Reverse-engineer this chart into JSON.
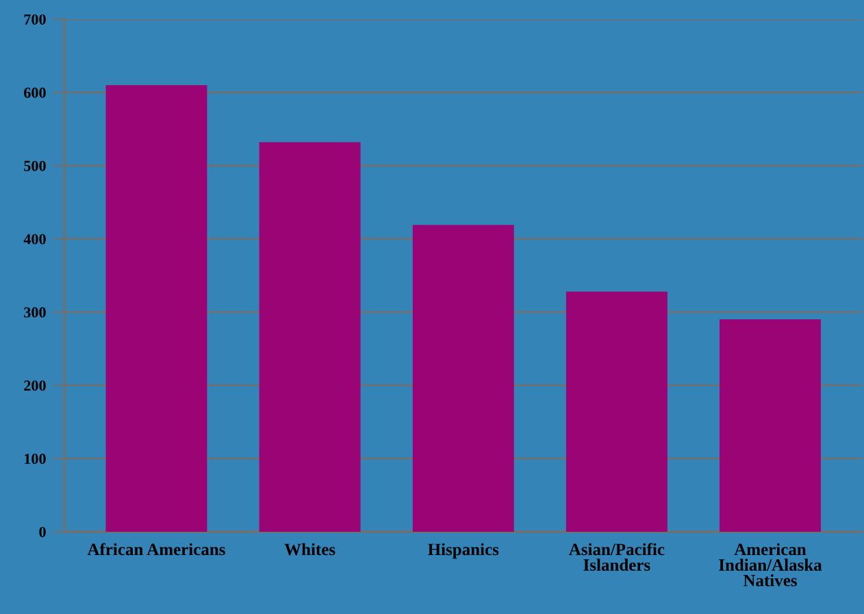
{
  "chart_data": {
    "type": "bar",
    "categories": [
      "African Americans",
      "Whites",
      "Hispanics",
      "Asian/Pacific\nIslanders",
      "American\nIndian/Alaska\nNatives"
    ],
    "values": [
      610,
      532,
      419,
      328,
      290
    ],
    "color": "#9a0474",
    "ylim": [
      0,
      700
    ],
    "yticks": [
      0,
      100,
      200,
      300,
      400,
      500,
      600,
      700
    ],
    "grid": "y",
    "legend": false
  }
}
